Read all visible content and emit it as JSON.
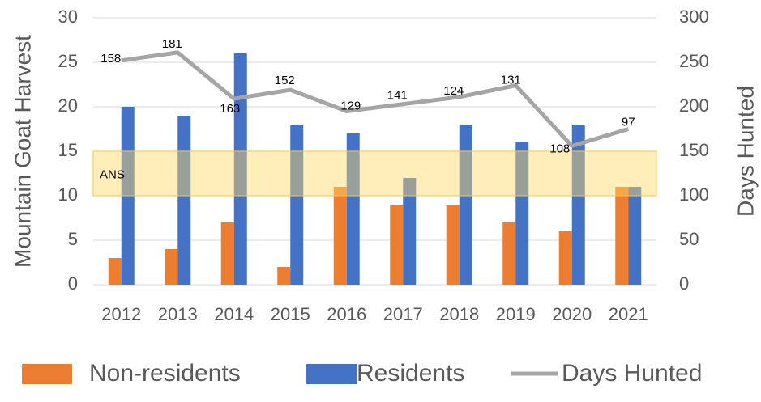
{
  "chart_data": {
    "type": "bar_line",
    "categories": [
      "2012",
      "2013",
      "2014",
      "2015",
      "2016",
      "2017",
      "2018",
      "2019",
      "2020",
      "2021"
    ],
    "series": [
      {
        "name": "Non-residents",
        "color": "#ed7d31",
        "type": "bar",
        "values": [
          3,
          4,
          7,
          2,
          11,
          9,
          9,
          7,
          6,
          11
        ]
      },
      {
        "name": "Residents",
        "color": "#4472c4",
        "type": "bar",
        "values": [
          20,
          19,
          26,
          18,
          17,
          12,
          18,
          16,
          18,
          11
        ]
      },
      {
        "name": "Days Hunted",
        "color": "#a5a5a5",
        "type": "line",
        "axis": "y2",
        "values": [
          252,
          261,
          209,
          219,
          195,
          203,
          211,
          224,
          156,
          175
        ]
      }
    ],
    "annotations": [
      "158",
      "181",
      "163",
      "152",
      "129",
      "141",
      "124",
      "131",
      "108",
      "97"
    ],
    "band": {
      "label": "ANS",
      "range": [
        10,
        15
      ]
    },
    "ylabel": "Mountain Goat Harvest",
    "y2label": "Days Hunted",
    "ylim": [
      0,
      30
    ],
    "yticks": [
      0,
      5,
      10,
      15,
      20,
      25,
      30
    ],
    "y2lim": [
      0,
      300
    ],
    "y2ticks": [
      0,
      50,
      100,
      150,
      200,
      250,
      300
    ],
    "grid": true
  }
}
